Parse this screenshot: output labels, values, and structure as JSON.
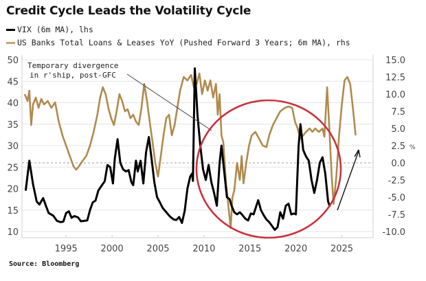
{
  "chart_data": {
    "type": "line",
    "title": "Credit Cycle Leads the Volatility Cycle",
    "source": "Source: Bloomberg",
    "xlabel": "",
    "x_ticks": [
      1995,
      2000,
      2005,
      2010,
      2015,
      2020,
      2025
    ],
    "xlim": [
      1990.2,
      2028.4
    ],
    "y_left": {
      "label": "",
      "ticks": [
        "50",
        "45",
        "40",
        "35",
        "30",
        "25",
        "20",
        "15",
        "10"
      ],
      "ylim": [
        8.5,
        51
      ]
    },
    "y_right": {
      "label": "",
      "ticks": [
        "15.0",
        "12.5",
        "10.0",
        "7.5",
        "5.0",
        "2.5",
        "0.0",
        "-2.5",
        "-5.0",
        "-7.5",
        "-10.0"
      ],
      "ylim": [
        -11.2,
        15.0
      ],
      "unit_symbol": "%"
    },
    "grid": true,
    "zero_line_right": true,
    "legend_placement": "top-left",
    "series": [
      {
        "name": "VIX (6m MA), lhs",
        "axis": "left",
        "color": "#000000",
        "points": [
          [
            1990.6,
            19.5
          ],
          [
            1991.0,
            26.5
          ],
          [
            1991.4,
            21.0
          ],
          [
            1991.8,
            17.0
          ],
          [
            1992.1,
            16.3
          ],
          [
            1992.5,
            17.8
          ],
          [
            1992.8,
            16.0
          ],
          [
            1993.1,
            14.3
          ],
          [
            1993.6,
            13.7
          ],
          [
            1994.0,
            12.5
          ],
          [
            1994.4,
            12.2
          ],
          [
            1994.7,
            12.3
          ],
          [
            1995.0,
            14.3
          ],
          [
            1995.3,
            14.7
          ],
          [
            1995.6,
            13.2
          ],
          [
            1995.9,
            13.6
          ],
          [
            1996.3,
            13.3
          ],
          [
            1996.6,
            12.4
          ],
          [
            1997.0,
            12.5
          ],
          [
            1997.3,
            12.6
          ],
          [
            1997.6,
            15.0
          ],
          [
            1997.9,
            16.8
          ],
          [
            1998.2,
            17.2
          ],
          [
            1998.5,
            19.5
          ],
          [
            1998.9,
            20.8
          ],
          [
            1999.2,
            21.7
          ],
          [
            1999.5,
            25.5
          ],
          [
            1999.8,
            25.0
          ],
          [
            2000.1,
            21.2
          ],
          [
            2000.3,
            27.0
          ],
          [
            2000.6,
            31.5
          ],
          [
            2000.9,
            26.0
          ],
          [
            2001.2,
            24.5
          ],
          [
            2001.5,
            24.0
          ],
          [
            2001.8,
            24.3
          ],
          [
            2002.1,
            21.5
          ],
          [
            2002.3,
            20.8
          ],
          [
            2002.6,
            26.5
          ],
          [
            2002.8,
            24.0
          ],
          [
            2003.1,
            26.5
          ],
          [
            2003.4,
            21.2
          ],
          [
            2003.7,
            28.5
          ],
          [
            2004.0,
            32.0
          ],
          [
            2004.3,
            27.0
          ],
          [
            2004.6,
            21.5
          ],
          [
            2004.9,
            18.0
          ],
          [
            2005.2,
            16.8
          ],
          [
            2005.5,
            15.5
          ],
          [
            2005.9,
            14.5
          ],
          [
            2006.3,
            13.5
          ],
          [
            2006.7,
            12.8
          ],
          [
            2007.0,
            12.7
          ],
          [
            2007.3,
            13.4
          ],
          [
            2007.6,
            12.0
          ],
          [
            2007.9,
            14.8
          ],
          [
            2008.2,
            20.0
          ],
          [
            2008.5,
            22.8
          ],
          [
            2008.7,
            23.5
          ],
          [
            2008.8,
            21.8
          ],
          [
            2009.0,
            48.0
          ],
          [
            2009.3,
            37.0
          ],
          [
            2009.6,
            30.0
          ],
          [
            2009.9,
            24.5
          ],
          [
            2010.2,
            22.0
          ],
          [
            2010.5,
            25.5
          ],
          [
            2010.8,
            21.5
          ],
          [
            2011.1,
            19.0
          ],
          [
            2011.4,
            16.0
          ],
          [
            2011.7,
            26.0
          ],
          [
            2011.9,
            30.0
          ],
          [
            2012.2,
            24.0
          ],
          [
            2012.5,
            18.0
          ],
          [
            2012.8,
            17.5
          ],
          [
            2013.0,
            16.0
          ],
          [
            2013.3,
            14.5
          ],
          [
            2013.6,
            14.0
          ],
          [
            2013.9,
            14.5
          ],
          [
            2014.2,
            13.8
          ],
          [
            2014.5,
            13.0
          ],
          [
            2014.8,
            12.6
          ],
          [
            2015.1,
            14.2
          ],
          [
            2015.4,
            14.0
          ],
          [
            2015.7,
            16.0
          ],
          [
            2015.9,
            17.3
          ],
          [
            2016.2,
            15.0
          ],
          [
            2016.5,
            13.8
          ],
          [
            2016.8,
            12.8
          ],
          [
            2017.1,
            12.2
          ],
          [
            2017.4,
            11.3
          ],
          [
            2017.7,
            10.4
          ],
          [
            2018.0,
            11.0
          ],
          [
            2018.3,
            14.5
          ],
          [
            2018.6,
            13.0
          ],
          [
            2018.9,
            16.0
          ],
          [
            2019.2,
            16.5
          ],
          [
            2019.5,
            14.0
          ],
          [
            2019.8,
            14.2
          ],
          [
            2020.0,
            14.0
          ],
          [
            2020.3,
            30.0
          ],
          [
            2020.5,
            35.0
          ],
          [
            2020.8,
            29.0
          ],
          [
            2021.1,
            27.5
          ],
          [
            2021.4,
            26.5
          ],
          [
            2021.7,
            22.0
          ],
          [
            2022.0,
            19.0
          ],
          [
            2022.3,
            22.0
          ],
          [
            2022.6,
            26.0
          ],
          [
            2022.9,
            27.3
          ],
          [
            2023.2,
            23.5
          ],
          [
            2023.5,
            17.0
          ],
          [
            2023.7,
            15.8
          ]
        ]
      },
      {
        "name": "US Banks Total Loans & Leases YoY (Pushed Forward 3 Years; 6m MA), rhs",
        "axis": "right",
        "color": "#b08a4e",
        "points": [
          [
            1990.5,
            10.0
          ],
          [
            1990.8,
            9.0
          ],
          [
            1991.0,
            10.5
          ],
          [
            1991.2,
            5.5
          ],
          [
            1991.4,
            8.5
          ],
          [
            1991.7,
            9.5
          ],
          [
            1992.0,
            8.0
          ],
          [
            1992.3,
            9.3
          ],
          [
            1992.6,
            8.5
          ],
          [
            1993.0,
            9.0
          ],
          [
            1993.4,
            8.0
          ],
          [
            1993.8,
            8.8
          ],
          [
            1994.2,
            6.0
          ],
          [
            1994.6,
            4.0
          ],
          [
            1995.0,
            2.5
          ],
          [
            1995.4,
            1.0
          ],
          [
            1995.8,
            -0.5
          ],
          [
            1996.1,
            -1.0
          ],
          [
            1996.4,
            -0.5
          ],
          [
            1996.8,
            0.3
          ],
          [
            1997.2,
            1.0
          ],
          [
            1997.6,
            2.5
          ],
          [
            1998.0,
            4.5
          ],
          [
            1998.4,
            7.0
          ],
          [
            1998.7,
            9.5
          ],
          [
            1999.0,
            11.0
          ],
          [
            1999.3,
            10.0
          ],
          [
            1999.6,
            8.0
          ],
          [
            1999.9,
            6.5
          ],
          [
            2000.2,
            5.5
          ],
          [
            2000.5,
            7.5
          ],
          [
            2000.8,
            10.0
          ],
          [
            2001.1,
            9.0
          ],
          [
            2001.4,
            7.5
          ],
          [
            2001.7,
            7.8
          ],
          [
            2002.0,
            6.5
          ],
          [
            2002.3,
            7.0
          ],
          [
            2002.6,
            6.0
          ],
          [
            2002.9,
            5.5
          ],
          [
            2003.2,
            8.0
          ],
          [
            2003.5,
            11.5
          ],
          [
            2003.8,
            9.0
          ],
          [
            2004.1,
            6.0
          ],
          [
            2004.4,
            3.0
          ],
          [
            2004.7,
            0.0
          ],
          [
            2005.0,
            -2.0
          ],
          [
            2005.3,
            1.0
          ],
          [
            2005.6,
            4.0
          ],
          [
            2005.9,
            6.5
          ],
          [
            2006.2,
            7.0
          ],
          [
            2006.5,
            4.0
          ],
          [
            2006.8,
            5.5
          ],
          [
            2007.1,
            8.0
          ],
          [
            2007.4,
            10.5
          ],
          [
            2007.8,
            12.5
          ],
          [
            2008.2,
            12.0
          ],
          [
            2008.6,
            12.8
          ],
          [
            2008.9,
            11.0
          ],
          [
            2009.2,
            11.5
          ],
          [
            2009.5,
            13.0
          ],
          [
            2009.8,
            10.0
          ],
          [
            2010.1,
            12.0
          ],
          [
            2010.4,
            10.5
          ],
          [
            2010.7,
            12.0
          ],
          [
            2011.0,
            9.5
          ],
          [
            2011.3,
            11.5
          ],
          [
            2011.5,
            7.0
          ],
          [
            2011.7,
            10.0
          ],
          [
            2011.9,
            4.0
          ],
          [
            2012.1,
            3.0
          ],
          [
            2012.4,
            -3.0
          ],
          [
            2012.6,
            -5.5
          ],
          [
            2012.9,
            -9.5
          ],
          [
            2013.1,
            -5.0
          ],
          [
            2013.3,
            -4.0
          ],
          [
            2013.6,
            0.0
          ],
          [
            2013.9,
            -2.5
          ],
          [
            2014.1,
            1.0
          ],
          [
            2014.3,
            -3.0
          ],
          [
            2014.6,
            0.0
          ],
          [
            2014.9,
            2.5
          ],
          [
            2015.2,
            4.0
          ],
          [
            2015.6,
            4.5
          ],
          [
            2016.0,
            3.5
          ],
          [
            2016.4,
            2.5
          ],
          [
            2016.8,
            2.3
          ],
          [
            2017.1,
            4.0
          ],
          [
            2017.5,
            5.5
          ],
          [
            2017.9,
            6.5
          ],
          [
            2018.3,
            7.5
          ],
          [
            2018.8,
            8.0
          ],
          [
            2019.2,
            8.2
          ],
          [
            2019.6,
            8.0
          ],
          [
            2019.9,
            6.0
          ],
          [
            2020.2,
            5.0
          ],
          [
            2020.5,
            3.5
          ],
          [
            2020.8,
            4.0
          ],
          [
            2021.1,
            4.5
          ],
          [
            2021.5,
            5.0
          ],
          [
            2021.8,
            4.5
          ],
          [
            2022.1,
            5.0
          ],
          [
            2022.5,
            4.5
          ],
          [
            2022.9,
            5.0
          ],
          [
            2023.1,
            3.8
          ],
          [
            2023.4,
            11.0
          ],
          [
            2023.6,
            6.0
          ],
          [
            2023.9,
            -2.0
          ],
          [
            2024.1,
            -6.0
          ],
          [
            2024.4,
            -2.0
          ],
          [
            2024.7,
            4.0
          ],
          [
            2025.0,
            8.5
          ],
          [
            2025.3,
            12.0
          ],
          [
            2025.6,
            12.5
          ],
          [
            2025.9,
            11.5
          ],
          [
            2026.2,
            8.0
          ],
          [
            2026.5,
            4.0
          ]
        ]
      }
    ],
    "annotations": [
      {
        "text_lines": [
          "Temporary divergence",
          "in r'ship, post-GFC"
        ],
        "type": "callout-line"
      },
      {
        "type": "ellipse-highlight",
        "color": "#c8323c",
        "range_years": [
          2010.5,
          2026
        ]
      },
      {
        "type": "arrow",
        "color": "#111111",
        "direction": "up-right"
      }
    ]
  },
  "legend": {
    "items": [
      {
        "label": "VIX (6m MA), lhs",
        "color": "#000000"
      },
      {
        "label": "US Banks Total Loans & Leases YoY (Pushed Forward 3 Years; 6m MA), rhs",
        "color": "#c4a274"
      }
    ]
  },
  "colors": {
    "grid": "#e4e4e4",
    "axis": "#cfcfcf",
    "zero_line": "#9a9a9a",
    "highlight": "#c8323c",
    "loans": "#b08a4e",
    "vix": "#000000"
  }
}
